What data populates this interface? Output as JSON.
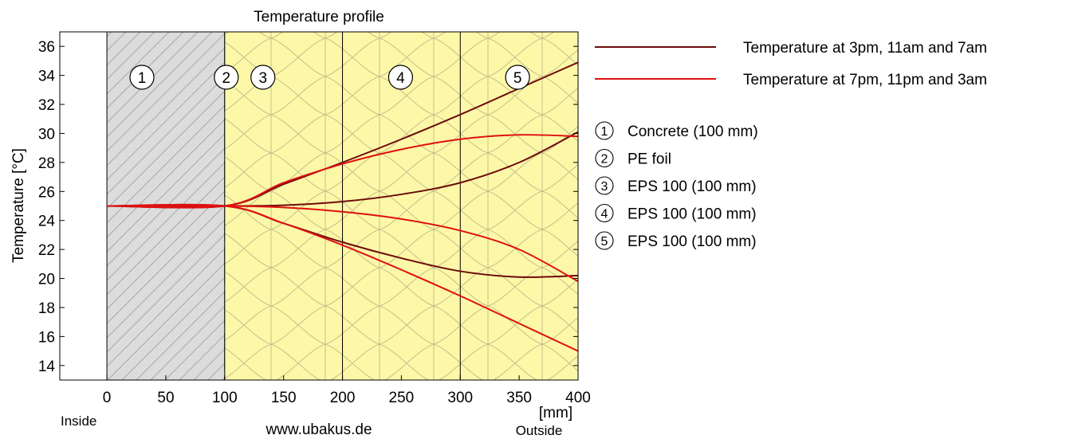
{
  "chart_data": {
    "type": "line",
    "title": "Temperature profile",
    "xlabel": "[mm]",
    "ylabel": "Temperature  [°C]",
    "xlim": [
      -40,
      400
    ],
    "ylim": [
      13,
      37
    ],
    "x_ticks": [
      0,
      50,
      100,
      150,
      200,
      250,
      300,
      350,
      400
    ],
    "y_ticks": [
      14,
      16,
      18,
      20,
      22,
      24,
      26,
      28,
      30,
      32,
      34,
      36
    ],
    "left_caption": "Inside",
    "right_caption": "Outside",
    "source": "www.ubakus.de",
    "layers": [
      {
        "id": "1",
        "label": "Concrete (100 mm)",
        "x0": 0,
        "x1": 100,
        "material": "concrete"
      },
      {
        "id": "2",
        "label": "PE foil",
        "x0": 100,
        "x1": 100,
        "material": "foil"
      },
      {
        "id": "3",
        "label": "EPS 100 (100 mm)",
        "x0": 100,
        "x1": 200,
        "material": "insulation"
      },
      {
        "id": "4",
        "label": "EPS 100 (100 mm)",
        "x0": 200,
        "x1": 300,
        "material": "insulation"
      },
      {
        "id": "5",
        "label": "EPS 100 (100 mm)",
        "x0": 300,
        "x1": 400,
        "material": "insulation"
      }
    ],
    "legend": [
      {
        "label": "Temperature at 3pm, 11am and 7am",
        "color": "#6e0a0a"
      },
      {
        "label": "Temperature at 7pm, 11pm and 3am",
        "color": "#e01010"
      }
    ],
    "series": [
      {
        "group": 0,
        "color": "#6e0a0a",
        "x": [
          0,
          100,
          150,
          200,
          250,
          300,
          350,
          400
        ],
        "y": [
          25,
          25,
          26.5,
          28.0,
          29.6,
          31.3,
          33.1,
          34.9
        ]
      },
      {
        "group": 0,
        "color": "#6e0a0a",
        "x": [
          0,
          100,
          150,
          200,
          250,
          300,
          350,
          400
        ],
        "y": [
          25,
          25,
          25.05,
          25.3,
          25.8,
          26.6,
          28.0,
          30.1
        ]
      },
      {
        "group": 0,
        "color": "#6e0a0a",
        "x": [
          0,
          100,
          150,
          200,
          250,
          300,
          350,
          400
        ],
        "y": [
          25,
          25,
          23.8,
          22.5,
          21.4,
          20.5,
          20.1,
          20.2
        ]
      },
      {
        "group": 1,
        "color": "#e01010",
        "x": [
          0,
          100,
          150,
          200,
          250,
          300,
          350,
          400
        ],
        "y": [
          25,
          25,
          26.6,
          27.9,
          28.9,
          29.6,
          29.9,
          29.8
        ]
      },
      {
        "group": 1,
        "color": "#e01010",
        "x": [
          0,
          100,
          150,
          200,
          250,
          300,
          350,
          400
        ],
        "y": [
          25,
          25,
          24.9,
          24.6,
          24.1,
          23.3,
          22.0,
          19.8
        ]
      },
      {
        "group": 1,
        "color": "#e01010",
        "x": [
          0,
          100,
          150,
          200,
          250,
          300,
          350,
          400
        ],
        "y": [
          25,
          25,
          23.8,
          22.3,
          20.6,
          18.8,
          16.9,
          15.0
        ]
      }
    ]
  }
}
